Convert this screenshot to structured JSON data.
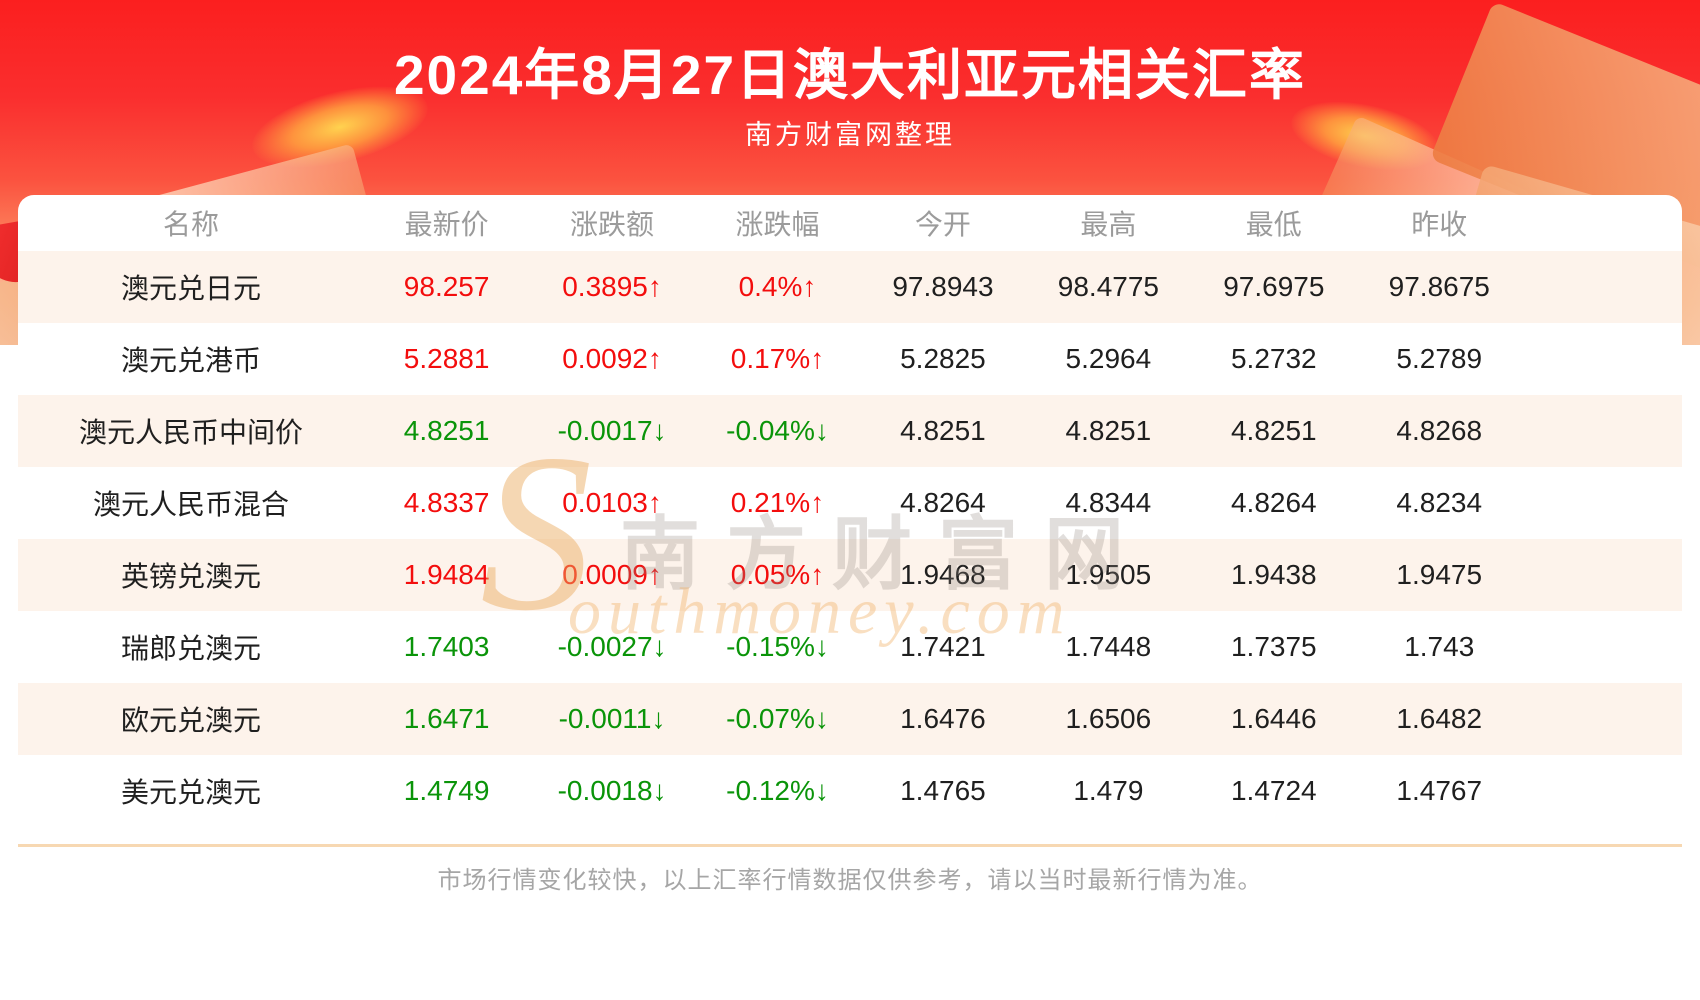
{
  "header": {
    "title": "2024年8月27日澳大利亚元相关汇率",
    "subtitle": "南方财富网整理"
  },
  "watermark": {
    "chinese": "南方财富网",
    "latin": "Southmoney.com"
  },
  "footer": {
    "note": "市场行情变化较快，以上汇率行情数据仅供参考，请以当时最新行情为准。"
  },
  "colors": {
    "banner_red": "#fb1f1f",
    "up_red": "#f30d0d",
    "down_green": "#0a9409",
    "stripe_peach": "#fdf3eb",
    "header_gray": "#9b9b9b"
  },
  "chart_data": {
    "type": "table",
    "title": "2024年8月27日澳大利亚元相关汇率",
    "columns": [
      "名称",
      "最新价",
      "涨跌额",
      "涨跌幅",
      "今开",
      "最高",
      "最低",
      "昨收"
    ],
    "rows": [
      {
        "name": "澳元兑日元",
        "latest": "98.257",
        "change": "0.3895↑",
        "change_pct": "0.4%↑",
        "trend": "up",
        "open": "97.8943",
        "high": "98.4775",
        "low": "97.6975",
        "prev_close": "97.8675"
      },
      {
        "name": "澳元兑港币",
        "latest": "5.2881",
        "change": "0.0092↑",
        "change_pct": "0.17%↑",
        "trend": "up",
        "open": "5.2825",
        "high": "5.2964",
        "low": "5.2732",
        "prev_close": "5.2789"
      },
      {
        "name": "澳元人民币中间价",
        "latest": "4.8251",
        "change": "-0.0017↓",
        "change_pct": "-0.04%↓",
        "trend": "down",
        "open": "4.8251",
        "high": "4.8251",
        "low": "4.8251",
        "prev_close": "4.8268"
      },
      {
        "name": "澳元人民币混合",
        "latest": "4.8337",
        "change": "0.0103↑",
        "change_pct": "0.21%↑",
        "trend": "up",
        "open": "4.8264",
        "high": "4.8344",
        "low": "4.8264",
        "prev_close": "4.8234"
      },
      {
        "name": "英镑兑澳元",
        "latest": "1.9484",
        "change": "0.0009↑",
        "change_pct": "0.05%↑",
        "trend": "up",
        "open": "1.9468",
        "high": "1.9505",
        "low": "1.9438",
        "prev_close": "1.9475"
      },
      {
        "name": "瑞郎兑澳元",
        "latest": "1.7403",
        "change": "-0.0027↓",
        "change_pct": "-0.15%↓",
        "trend": "down",
        "open": "1.7421",
        "high": "1.7448",
        "low": "1.7375",
        "prev_close": "1.743"
      },
      {
        "name": "欧元兑澳元",
        "latest": "1.6471",
        "change": "-0.0011↓",
        "change_pct": "-0.07%↓",
        "trend": "down",
        "open": "1.6476",
        "high": "1.6506",
        "low": "1.6446",
        "prev_close": "1.6482"
      },
      {
        "name": "美元兑澳元",
        "latest": "1.4749",
        "change": "-0.0018↓",
        "change_pct": "-0.12%↓",
        "trend": "down",
        "open": "1.4765",
        "high": "1.479",
        "low": "1.4724",
        "prev_close": "1.4767"
      }
    ]
  }
}
